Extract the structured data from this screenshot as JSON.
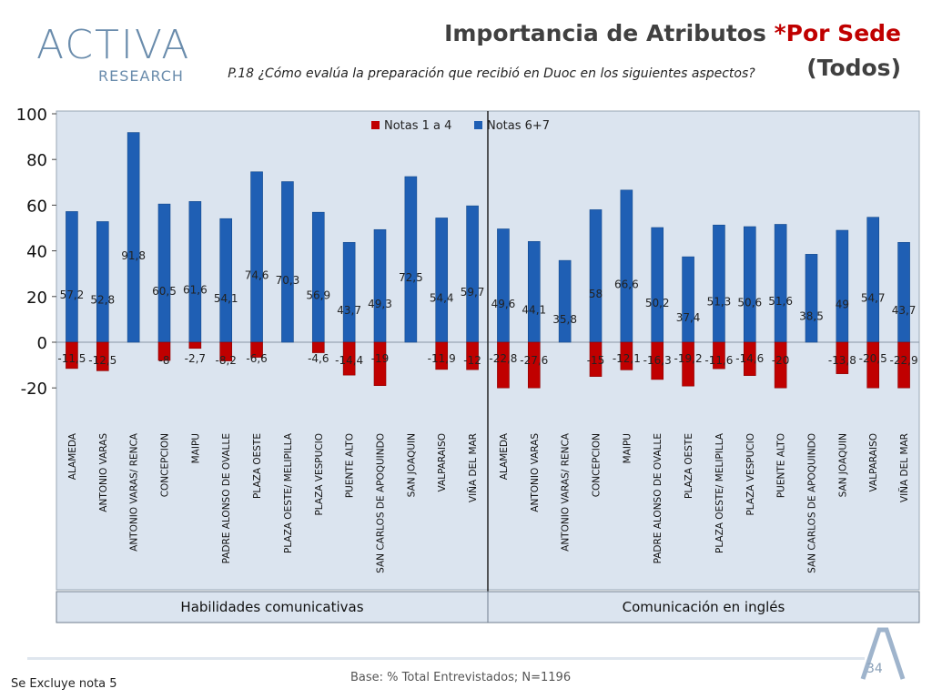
{
  "header": {
    "title_main": "Importancia de Atributos ",
    "title_star": "*Por Sede",
    "title_line2": "(Todos)",
    "question": "P.18 ¿Cómo evalúa la preparación que recibió en Duoc en los siguientes aspectos?"
  },
  "logo": {
    "word": "ACTIVA",
    "sub": "RESEARCH"
  },
  "footer": {
    "note": "Se Excluye nota 5",
    "base": "Base: % Total Entrevistados; N=1196",
    "page": "34"
  },
  "colors": {
    "negative": "#c00000",
    "positive": "#1f5fb4",
    "plot_bg": "#dbe4ef"
  },
  "chart_data": {
    "type": "bar",
    "ylim": [
      -20,
      100
    ],
    "yticks": [
      -20,
      0,
      20,
      40,
      60,
      80,
      100
    ],
    "legend": [
      "Notas 1 a 4",
      "Notas 6+7"
    ],
    "groups": [
      {
        "label": "Habilidades comunicativas",
        "categories": [
          "ALAMEDA",
          "ANTONIO VARAS",
          "ANTONIO VARAS/ RENCA",
          "CONCEPCION",
          "MAIPU",
          "PADRE ALONSO DE OVALLE",
          "PLAZA OESTE",
          "PLAZA OESTE/ MELIPILLA",
          "PLAZA VESPUCIO",
          "PUENTE ALTO",
          "SAN CARLOS DE APOQUINDO",
          "SAN JOAQUIN",
          "VALPARAISO",
          "VIÑA DEL MAR"
        ],
        "series": [
          {
            "name": "Notas 1 a 4",
            "values": [
              -11.5,
              -12.5,
              null,
              -8,
              -2.7,
              -8.2,
              -6.6,
              null,
              -4.6,
              -14.4,
              -19,
              null,
              -11.9,
              -12
            ]
          },
          {
            "name": "Notas 6+7",
            "values": [
              57.2,
              52.8,
              91.8,
              60.5,
              61.6,
              54.1,
              74.6,
              70.3,
              56.9,
              43.7,
              49.3,
              72.5,
              54.4,
              59.7
            ]
          }
        ]
      },
      {
        "label": "Comunicación en inglés",
        "categories": [
          "ALAMEDA",
          "ANTONIO VARAS",
          "ANTONIO VARAS/ RENCA",
          "CONCEPCION",
          "MAIPU",
          "PADRE ALONSO DE OVALLE",
          "PLAZA OESTE",
          "PLAZA OESTE/ MELIPILLA",
          "PLAZA VESPUCIO",
          "PUENTE ALTO",
          "SAN CARLOS DE APOQUINDO",
          "SAN JOAQUIN",
          "VALPARAISO",
          "VIÑA DEL MAR"
        ],
        "series": [
          {
            "name": "Notas 1 a 4",
            "values": [
              -22.8,
              -27.6,
              null,
              -15,
              -12.1,
              -16.3,
              -19.2,
              -11.6,
              -14.6,
              -20,
              null,
              -13.8,
              -20.5,
              -22.9
            ]
          },
          {
            "name": "Notas 6+7",
            "values": [
              49.6,
              44.1,
              35.8,
              58,
              66.6,
              50.2,
              37.4,
              51.3,
              50.6,
              51.6,
              38.5,
              49,
              54.7,
              43.7
            ]
          }
        ]
      }
    ]
  }
}
